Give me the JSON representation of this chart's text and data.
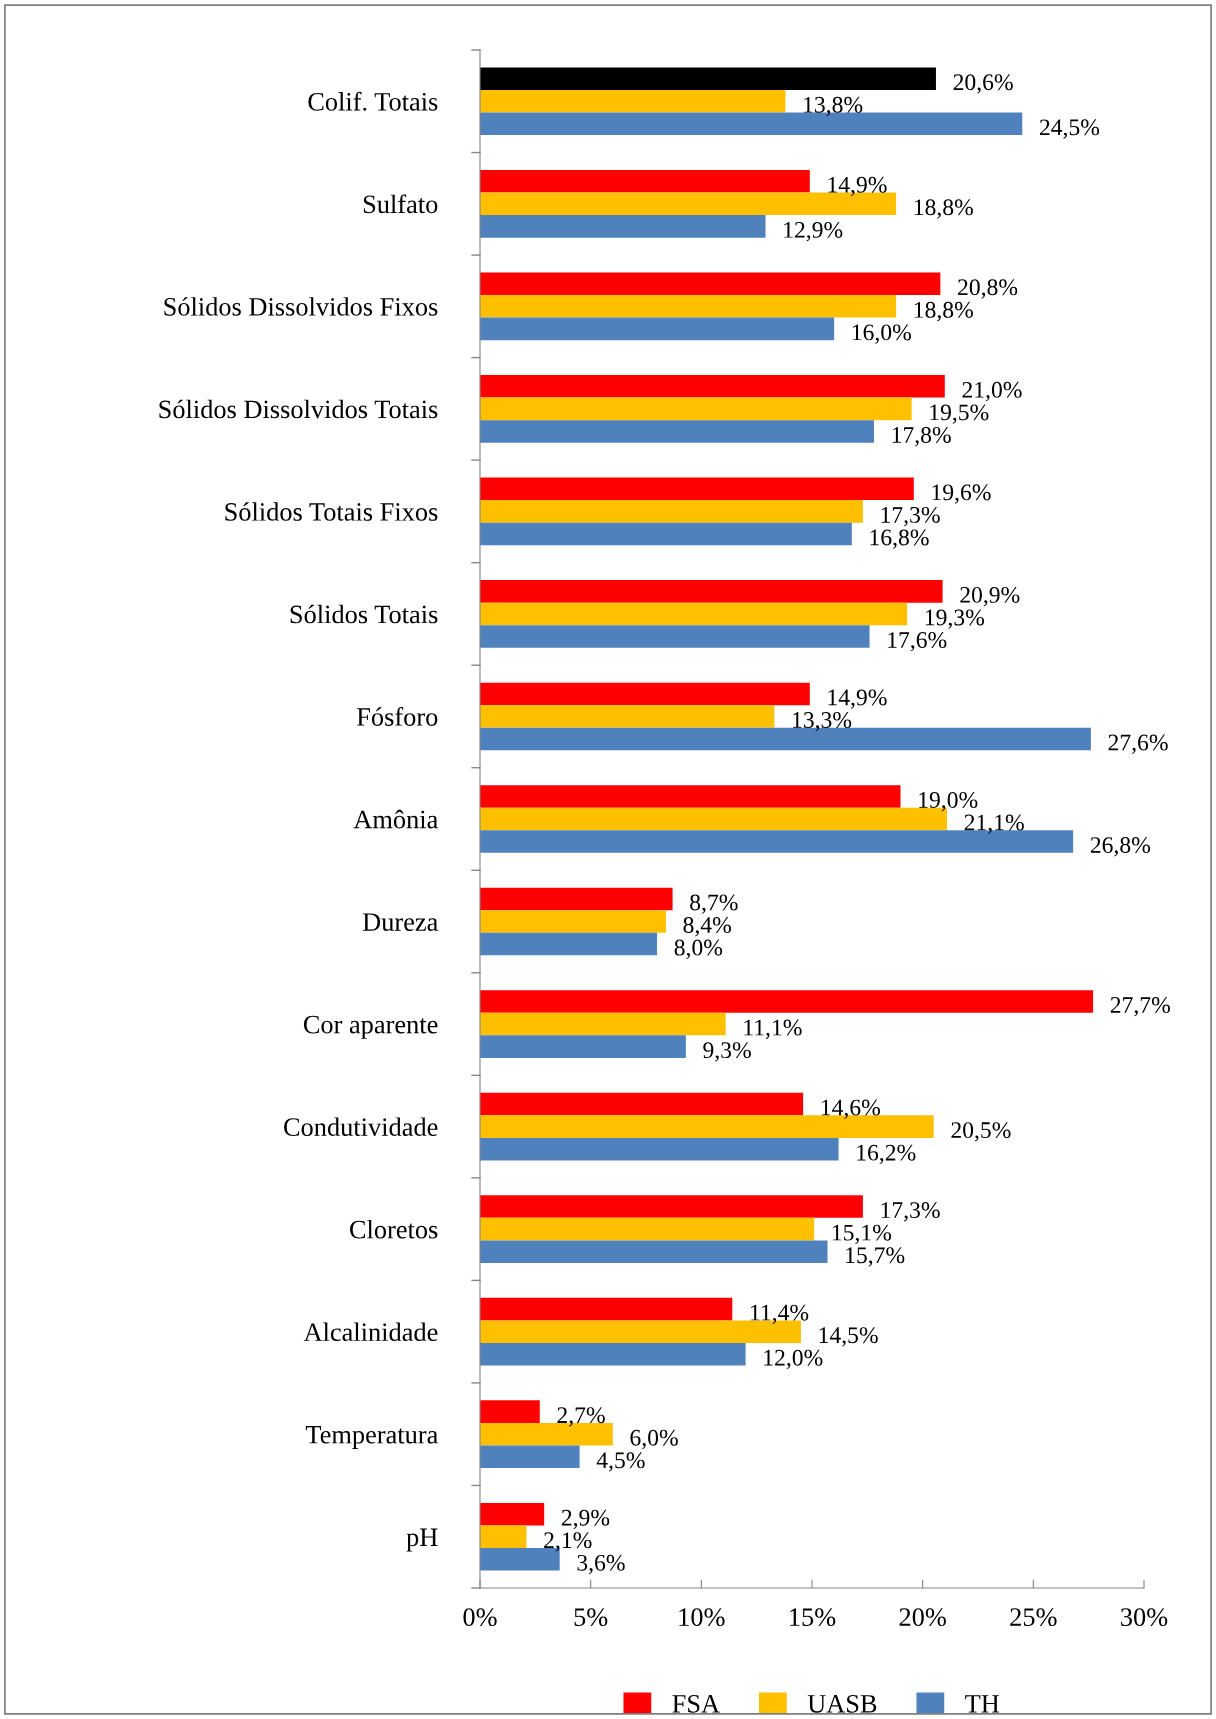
{
  "chart_data": {
    "type": "bar",
    "orientation": "horizontal",
    "data_labels": false,
    "legend": "bottom",
    "grid": false,
    "categories": [
      "Colif. Totais",
      "Sulfato",
      "Sólidos Dissolvidos Fixos",
      "Sólidos Dissolvidos Totais",
      "Sólidos Totais Fixos",
      "Sólidos Totais",
      "Fósforo",
      "Amônia",
      "Dureza",
      "Cor aparente",
      "Condutividade",
      "Cloretos",
      "Alcalinidade",
      "Temperatura",
      "pH"
    ],
    "xlim": [
      0,
      30
    ],
    "xticks": [
      {
        "value": 0,
        "label": "0%"
      },
      {
        "value": 5,
        "label": "5%"
      },
      {
        "value": 10,
        "label": "10%"
      },
      {
        "value": 15,
        "label": "15%"
      },
      {
        "value": 20,
        "label": "20%"
      },
      {
        "value": 25,
        "label": "25%"
      },
      {
        "value": 30,
        "label": "30%"
      }
    ],
    "series": [
      {
        "name": "FSA",
        "color": "#ff0000",
        "colors": [
          "#000000",
          "#ff0000",
          "#ff0000",
          "#ff0000",
          "#ff0000",
          "#ff0000",
          "#ff0000",
          "#ff0000",
          "#ff0000",
          "#ff0000",
          "#ff0000",
          "#ff0000",
          "#ff0000",
          "#ff0000",
          "#ff0000"
        ],
        "values": [
          20.6,
          14.9,
          20.8,
          21.0,
          19.6,
          20.9,
          14.9,
          19.0,
          8.7,
          27.7,
          14.6,
          17.3,
          11.4,
          2.7,
          2.9
        ],
        "value_labels": [
          "20,6%",
          "14,9%",
          "20,8%",
          "21,0%",
          "19,6%",
          "20,9%",
          "14,9%",
          "19,0%",
          "8,7%",
          "27,7%",
          "14,6%",
          "17,3%",
          "11,4%",
          "2,7%",
          "2,9%"
        ]
      },
      {
        "name": "UASB",
        "color": "#ffc000",
        "values": [
          13.8,
          18.8,
          18.8,
          19.5,
          17.3,
          19.3,
          13.3,
          21.1,
          8.4,
          11.1,
          20.5,
          15.1,
          14.5,
          6.0,
          2.1
        ],
        "value_labels": [
          "13,8%",
          "18,8%",
          "18,8%",
          "19,5%",
          "17,3%",
          "19,3%",
          "13,3%",
          "21,1%",
          "8,4%",
          "11,1%",
          "20,5%",
          "15,1%",
          "14,5%",
          "6,0%",
          "2,1%"
        ]
      },
      {
        "name": "TH",
        "color": "#4f81bd",
        "values": [
          24.5,
          12.9,
          16.0,
          17.8,
          16.8,
          17.6,
          27.6,
          26.8,
          8.0,
          9.3,
          16.2,
          15.7,
          12.0,
          4.5,
          3.6
        ],
        "value_labels": [
          "24,5%",
          "12,9%",
          "16,0%",
          "17,8%",
          "16,8%",
          "17,6%",
          "27,6%",
          "26,8%",
          "8,0%",
          "9,3%",
          "16,2%",
          "15,7%",
          "12,0%",
          "4,5%",
          "3,6%"
        ]
      }
    ]
  }
}
